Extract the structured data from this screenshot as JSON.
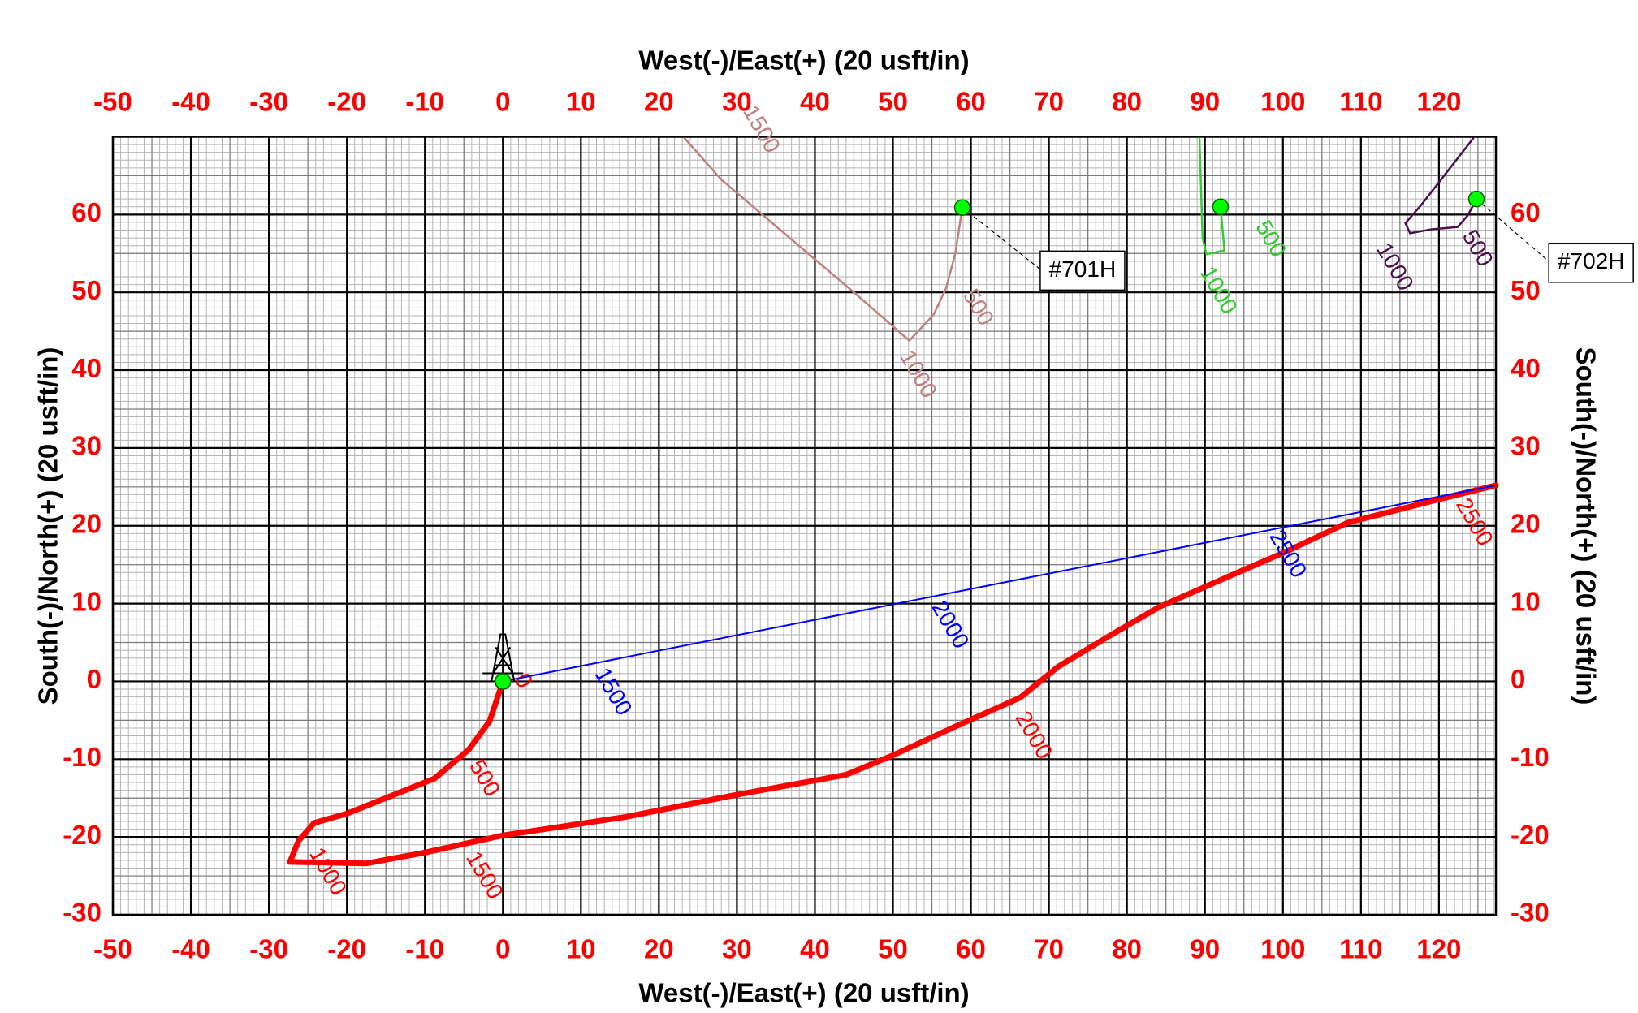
{
  "chart_data": {
    "type": "line",
    "x_label": "West(-)/East(+) (20 usft/in)",
    "y_label": "South(-)/North(+) (20 usft/in)",
    "xlim": [
      -50,
      127.3
    ],
    "ylim": [
      -30,
      70
    ],
    "xticks": [
      -50,
      -40,
      -30,
      -20,
      -10,
      0,
      10,
      20,
      30,
      40,
      50,
      60,
      70,
      80,
      90,
      100,
      110,
      120
    ],
    "yticks": [
      -30,
      -20,
      -10,
      0,
      10,
      20,
      30,
      40,
      50,
      60
    ],
    "grid": true,
    "tick_color": "#ff0000",
    "series": [
      {
        "color": "#ff0000",
        "width": 7,
        "x": [
          0,
          -1.7,
          -4.4,
          -8.8,
          -20,
          -24.2,
          -26.2,
          -27.3,
          -17.5,
          -10,
          0,
          15.9,
          29.3,
          44,
          50,
          58,
          66.3,
          71.2,
          78,
          84.2,
          94.9,
          100,
          108.3,
          120,
          127.3
        ],
        "values": [
          0,
          -5.1,
          -8.8,
          -12.5,
          -17,
          -18.2,
          -20.5,
          -23.2,
          -23.4,
          -22,
          -19.8,
          -17.4,
          -14.7,
          -12,
          -9.5,
          -5.8,
          -2.1,
          1.9,
          6,
          9.6,
          14.3,
          16.5,
          20.4,
          23.4,
          25.2
        ],
        "depth_labels": [
          {
            "text": "0",
            "x": 2.5,
            "y": 0
          },
          {
            "text": "500",
            "x": -2.5,
            "y": -12.5
          },
          {
            "text": "1000",
            "x": -22.6,
            "y": -24.5
          },
          {
            "text": "1500",
            "x": -2.5,
            "y": -25
          },
          {
            "text": "2000",
            "x": 67.9,
            "y": -7
          },
          {
            "text": "2500",
            "x": 124.4,
            "y": 20.4
          }
        ]
      },
      {
        "color": "#0000ff",
        "width": 2,
        "x": [
          0,
          127.3
        ],
        "values": [
          0,
          25.2
        ],
        "depth_labels": [
          {
            "text": "1500",
            "x": 14,
            "y": -1.4
          },
          {
            "text": "2000",
            "x": 57.2,
            "y": 7.2
          },
          {
            "text": "2500",
            "x": 100.5,
            "y": 16.3
          }
        ]
      },
      {
        "name": "#701H",
        "label_x": 74.3,
        "label_y": 52.8,
        "color": "#c08080",
        "width": 2.5,
        "x": [
          58.9,
          58,
          56.8,
          55.2,
          52.1,
          45,
          35,
          28,
          23.3
        ],
        "values": [
          60.9,
          55,
          50.5,
          47.1,
          43.8,
          50,
          58.5,
          64.5,
          69.8
        ],
        "depth_labels": [
          {
            "text": "500",
            "x": 60.8,
            "y": 48
          },
          {
            "text": "1000",
            "x": 53.1,
            "y": 39.4
          },
          {
            "text": "1500",
            "x": 33,
            "y": 70.9
          }
        ]
      },
      {
        "color": "#33cc33",
        "width": 2.5,
        "x": [
          92,
          92.5,
          90.2,
          89.7,
          89.3
        ],
        "values": [
          61,
          55.4,
          54.9,
          57,
          69.8
        ],
        "depth_labels": [
          {
            "text": "500",
            "x": 98.3,
            "y": 56.8
          },
          {
            "text": "1000",
            "x": 91.6,
            "y": 50.2
          }
        ]
      },
      {
        "name": "#702H",
        "label_x": 139.5,
        "label_y": 53.8,
        "color": "#4b0f4b",
        "width": 2.5,
        "x": [
          124.8,
          123.7,
          122.4,
          119,
          116.3,
          115.7,
          117.7,
          124.4
        ],
        "values": [
          62,
          59.9,
          58.4,
          58.1,
          57.6,
          58.9,
          61.2,
          69.8
        ],
        "depth_labels": [
          {
            "text": "500",
            "x": 124.8,
            "y": 55.6
          },
          {
            "text": "1000",
            "x": 114.2,
            "y": 53.2
          }
        ]
      }
    ]
  }
}
